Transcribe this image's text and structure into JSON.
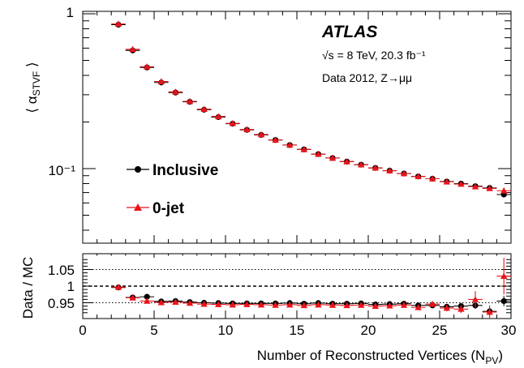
{
  "chart_data": [
    {
      "type": "scatter",
      "scale": "log",
      "ylabel": "⟨ α_STVF ⟩",
      "ylabel_main": "α",
      "ylabel_sub": "STVF",
      "ylim": [
        0.04,
        1.0
      ],
      "xlim": [
        0,
        30
      ],
      "x_ticks": [
        "0",
        "5",
        "10",
        "15",
        "20",
        "25",
        "30"
      ],
      "y_ticks": [
        {
          "value": 1.0,
          "label": "1"
        },
        {
          "value": 0.1,
          "label": "10⁻¹"
        }
      ],
      "annotations": {
        "experiment": "ATLAS",
        "energy": "√s = 8 TeV, 20.3 fb⁻¹",
        "dataset": "Data 2012, Z→μμ"
      },
      "legend_position": "left-middle",
      "x": [
        2.5,
        3.5,
        4.5,
        5.5,
        6.5,
        7.5,
        8.5,
        9.5,
        10.5,
        11.5,
        12.5,
        13.5,
        14.5,
        15.5,
        16.5,
        17.5,
        18.5,
        19.5,
        20.5,
        21.5,
        22.5,
        23.5,
        24.5,
        25.5,
        26.5,
        27.5,
        28.5,
        29.5
      ],
      "series": [
        {
          "name": "Inclusive",
          "marker": "circle",
          "color": "#000000",
          "values": [
            0.85,
            0.58,
            0.45,
            0.36,
            0.31,
            0.27,
            0.24,
            0.215,
            0.195,
            0.178,
            0.165,
            0.153,
            0.142,
            0.133,
            0.124,
            0.117,
            0.111,
            0.106,
            0.101,
            0.097,
            0.093,
            0.089,
            0.086,
            0.0825,
            0.08,
            0.077,
            0.075,
            0.068
          ]
        },
        {
          "name": "0-jet",
          "marker": "triangle",
          "color": "#e8141b",
          "values": [
            0.86,
            0.59,
            0.455,
            0.365,
            0.313,
            0.272,
            0.242,
            0.217,
            0.196,
            0.179,
            0.166,
            0.153,
            0.142,
            0.133,
            0.124,
            0.117,
            0.111,
            0.106,
            0.101,
            0.097,
            0.093,
            0.089,
            0.086,
            0.0822,
            0.0795,
            0.0765,
            0.0745,
            0.072
          ]
        }
      ]
    },
    {
      "type": "scatter",
      "ylabel": "Data / MC",
      "xlabel": "Number of Reconstructed Vertices (N_PV)",
      "xlabel_main": "Number of Reconstructed Vertices (N",
      "xlabel_sub": "PV",
      "xlabel_end": ")",
      "xlim": [
        0,
        30
      ],
      "ylim": [
        0.895,
        1.09
      ],
      "y_ticks": [
        {
          "value": 1.05,
          "label": "1.05"
        },
        {
          "value": 1.0,
          "label": "1"
        },
        {
          "value": 0.95,
          "label": "0.95"
        }
      ],
      "reference_lines": [
        1.05,
        1.0,
        0.95
      ],
      "x": [
        2.5,
        3.5,
        4.5,
        5.5,
        6.5,
        7.5,
        8.5,
        9.5,
        10.5,
        11.5,
        12.5,
        13.5,
        14.5,
        15.5,
        16.5,
        17.5,
        18.5,
        19.5,
        20.5,
        21.5,
        22.5,
        23.5,
        24.5,
        25.5,
        26.5,
        27.5,
        28.5,
        29.5
      ],
      "series": [
        {
          "name": "Inclusive",
          "marker": "circle",
          "color": "#000000",
          "values": [
            0.996,
            0.966,
            0.968,
            0.954,
            0.955,
            0.952,
            0.95,
            0.949,
            0.948,
            0.948,
            0.948,
            0.948,
            0.949,
            0.947,
            0.949,
            0.947,
            0.947,
            0.948,
            0.945,
            0.946,
            0.947,
            0.942,
            0.942,
            0.938,
            0.94,
            0.942,
            0.924,
            0.955
          ],
          "errors": [
            0.006,
            0.004,
            0.004,
            0.003,
            0.003,
            0.003,
            0.003,
            0.003,
            0.003,
            0.003,
            0.003,
            0.003,
            0.003,
            0.003,
            0.003,
            0.003,
            0.003,
            0.003,
            0.003,
            0.004,
            0.004,
            0.005,
            0.006,
            0.007,
            0.008,
            0.01,
            0.012,
            0.015
          ]
        },
        {
          "name": "0-jet",
          "marker": "triangle",
          "color": "#e8141b",
          "values": [
            0.997,
            0.965,
            0.955,
            0.951,
            0.952,
            0.949,
            0.946,
            0.945,
            0.944,
            0.945,
            0.944,
            0.943,
            0.944,
            0.942,
            0.944,
            0.943,
            0.942,
            0.943,
            0.94,
            0.941,
            0.943,
            0.936,
            0.946,
            0.934,
            0.931,
            0.96,
            0.922,
            1.03
          ],
          "errors": [
            0.007,
            0.004,
            0.004,
            0.003,
            0.003,
            0.003,
            0.003,
            0.003,
            0.003,
            0.003,
            0.003,
            0.003,
            0.004,
            0.004,
            0.004,
            0.004,
            0.004,
            0.004,
            0.005,
            0.005,
            0.006,
            0.007,
            0.009,
            0.01,
            0.012,
            0.025,
            0.02,
            0.055
          ]
        }
      ]
    }
  ]
}
